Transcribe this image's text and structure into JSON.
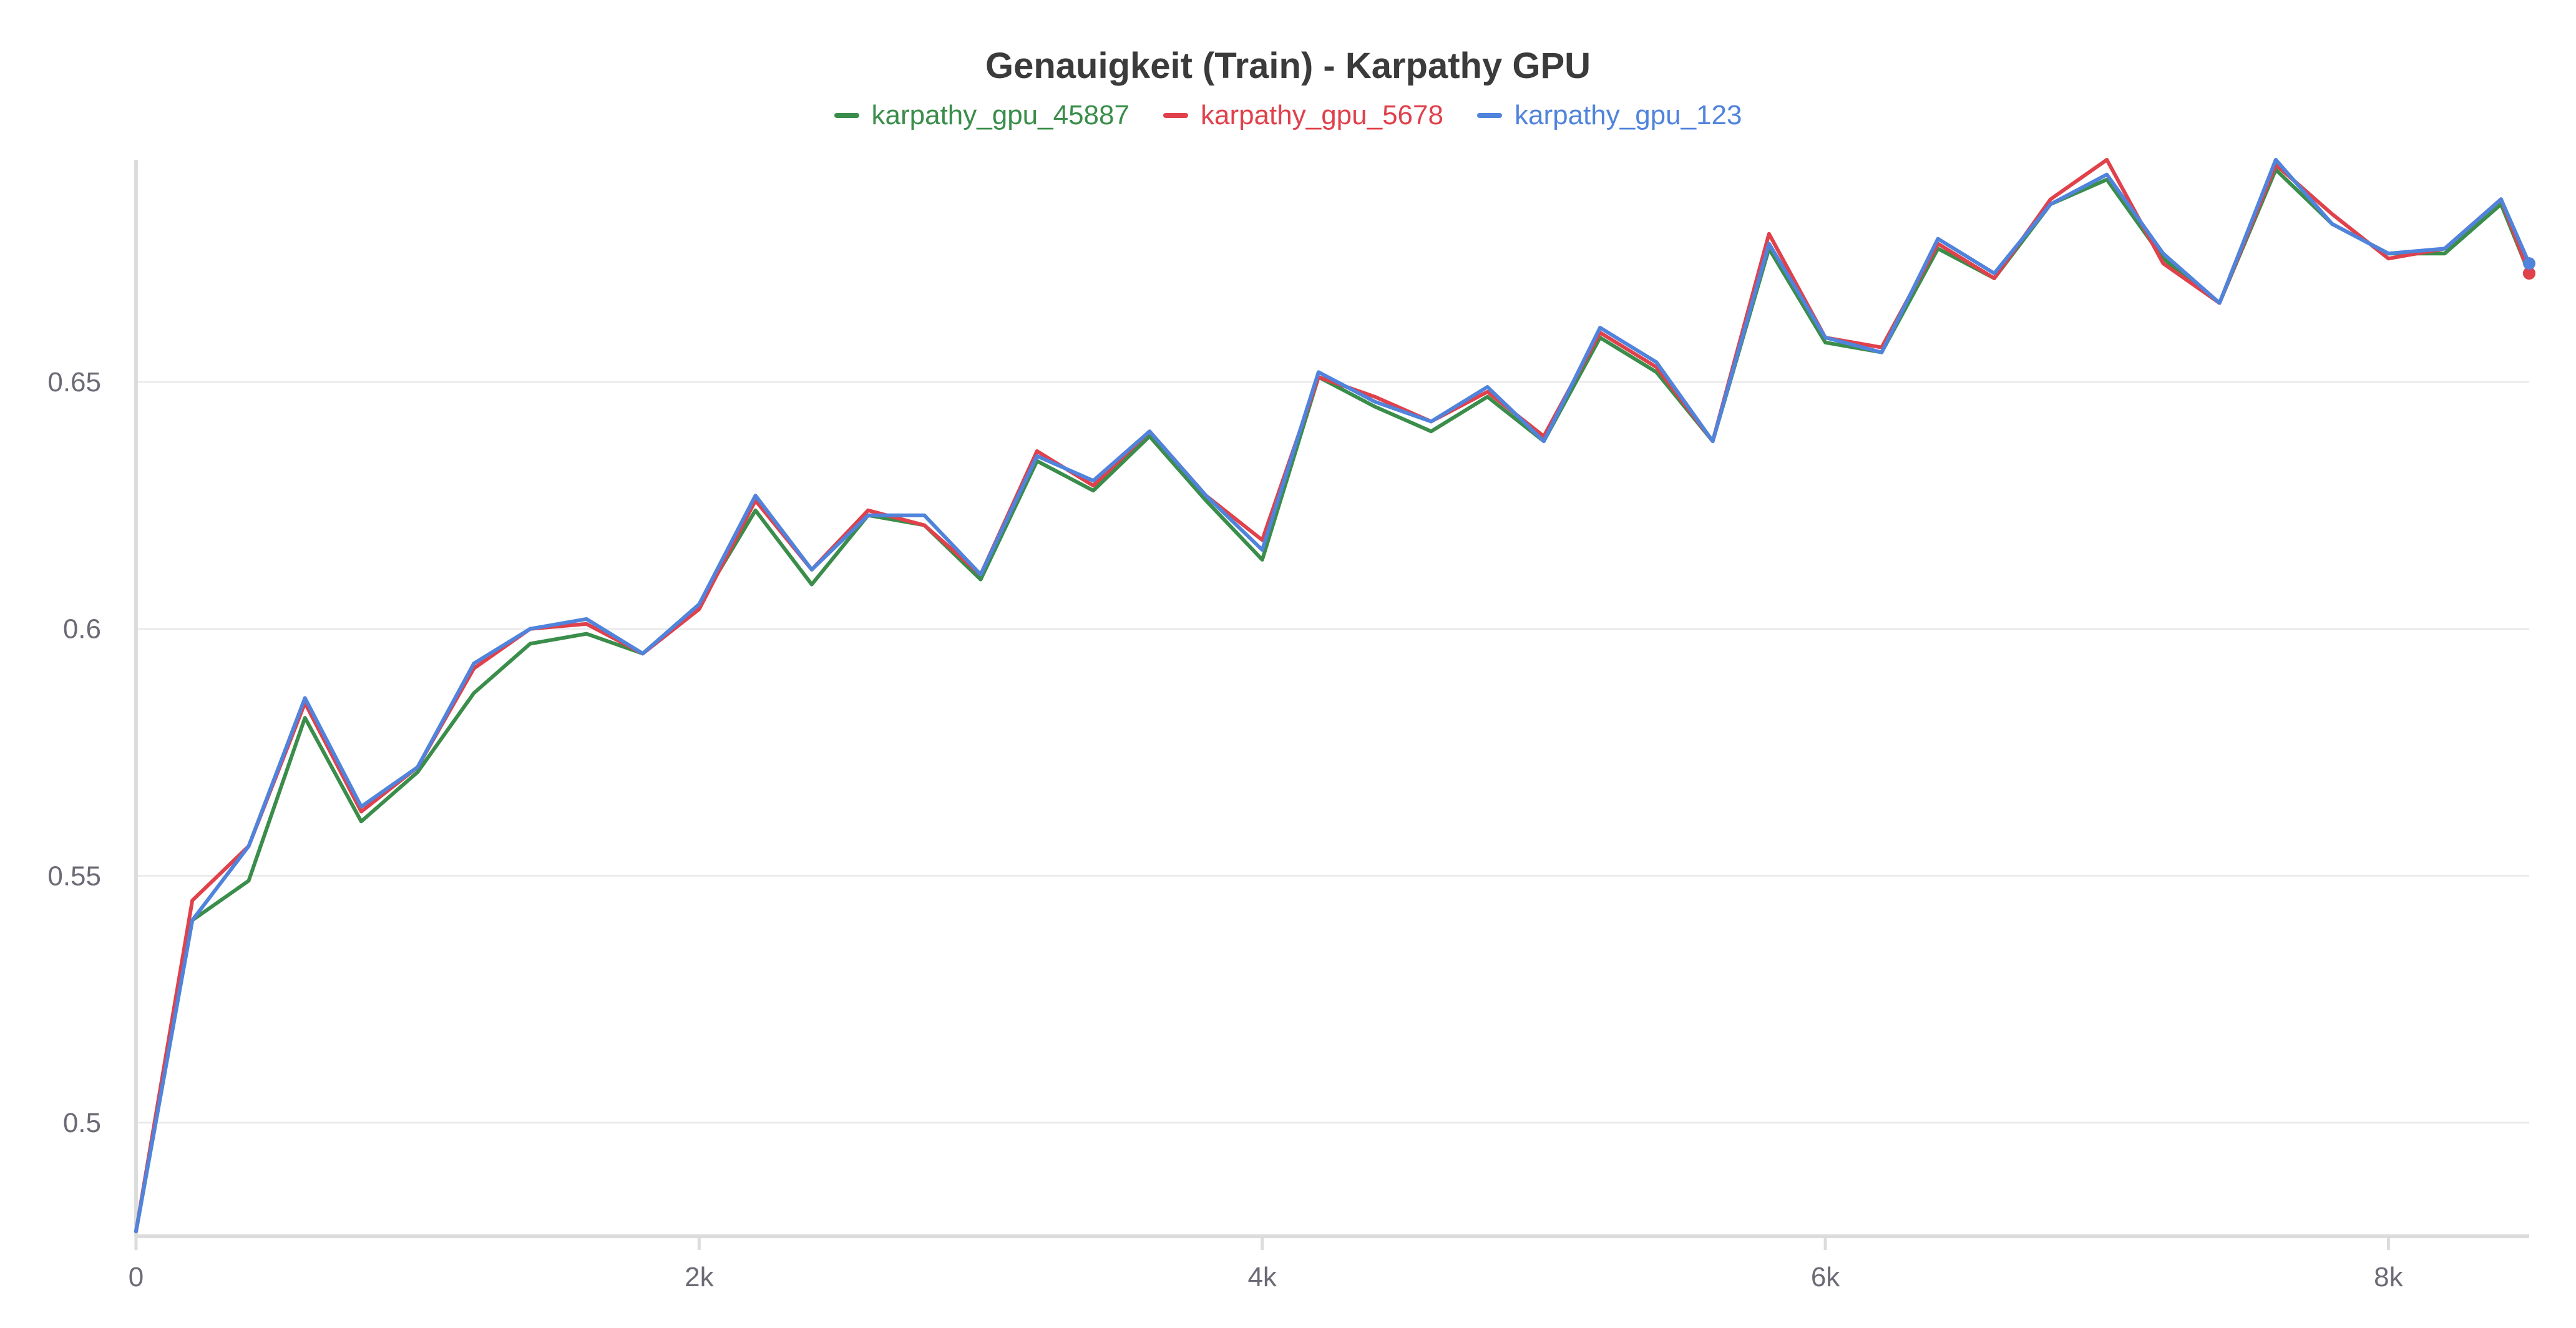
{
  "chart_data": {
    "type": "line",
    "title": "Genauigkeit (Train) - Karpathy GPU",
    "xlabel": "",
    "ylabel": "",
    "xlim": [
      0,
      8500
    ],
    "ylim": [
      0.477,
      0.695
    ],
    "x_ticks": [
      0,
      2000,
      4000,
      6000,
      8000
    ],
    "x_tick_labels": [
      "0",
      "2k",
      "4k",
      "6k",
      "8k"
    ],
    "y_ticks": [
      0.5,
      0.55,
      0.6,
      0.65
    ],
    "y_tick_labels": [
      "0.5",
      "0.55",
      "0.6",
      "0.65"
    ],
    "grid": true,
    "legend_position": "top-center",
    "x": [
      0,
      200,
      400,
      600,
      800,
      1000,
      1200,
      1400,
      1600,
      1800,
      2000,
      2200,
      2400,
      2600,
      2800,
      3000,
      3200,
      3400,
      3600,
      3800,
      4000,
      4200,
      4400,
      4600,
      4800,
      5000,
      5200,
      5400,
      5600,
      5800,
      6000,
      6200,
      6400,
      6600,
      6800,
      7000,
      7200,
      7400,
      7600,
      7800,
      8000,
      8200,
      8400,
      8500
    ],
    "series": [
      {
        "name": "karpathy_gpu_45887",
        "color": "#3a8d4a",
        "values": [
          0.478,
          0.541,
          0.549,
          0.582,
          0.561,
          0.571,
          0.587,
          0.597,
          0.599,
          0.595,
          0.605,
          0.624,
          0.609,
          0.623,
          0.621,
          0.61,
          0.634,
          0.628,
          0.639,
          0.626,
          0.614,
          0.651,
          0.645,
          0.64,
          0.647,
          0.638,
          0.659,
          0.652,
          0.638,
          0.677,
          0.658,
          0.656,
          0.677,
          0.671,
          0.686,
          0.691,
          0.675,
          0.666,
          0.693,
          0.682,
          0.676,
          0.676,
          0.686,
          0.672
        ]
      },
      {
        "name": "karpathy_gpu_5678",
        "color": "#e0414b",
        "values": [
          0.478,
          0.545,
          0.556,
          0.585,
          0.563,
          0.572,
          0.592,
          0.6,
          0.601,
          0.595,
          0.604,
          0.626,
          0.612,
          0.624,
          0.621,
          0.611,
          0.636,
          0.629,
          0.64,
          0.627,
          0.618,
          0.651,
          0.647,
          0.642,
          0.648,
          0.639,
          0.66,
          0.653,
          0.638,
          0.68,
          0.659,
          0.657,
          0.678,
          0.671,
          0.687,
          0.695,
          0.674,
          0.666,
          0.694,
          0.684,
          0.675,
          0.677,
          0.687,
          0.672
        ]
      },
      {
        "name": "karpathy_gpu_123",
        "color": "#5083dc",
        "values": [
          0.478,
          0.541,
          0.556,
          0.586,
          0.564,
          0.572,
          0.593,
          0.6,
          0.602,
          0.595,
          0.605,
          0.627,
          0.612,
          0.623,
          0.623,
          0.611,
          0.635,
          0.63,
          0.64,
          0.627,
          0.616,
          0.652,
          0.646,
          0.642,
          0.649,
          0.638,
          0.661,
          0.654,
          0.638,
          0.678,
          0.659,
          0.656,
          0.679,
          0.672,
          0.686,
          0.692,
          0.676,
          0.666,
          0.695,
          0.682,
          0.676,
          0.677,
          0.687,
          0.674
        ]
      }
    ]
  }
}
